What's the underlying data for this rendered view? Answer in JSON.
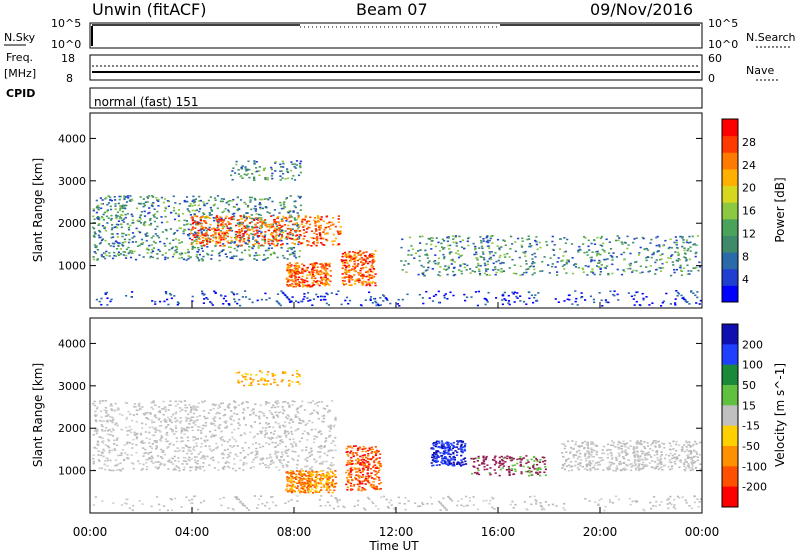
{
  "header": {
    "station": "Unwin (fitACF)",
    "beam": "Beam 07",
    "date": "09/Nov/2016"
  },
  "control_panels": {
    "nsky": {
      "left_label": "N.Sky",
      "right_label": "N.Search",
      "tick_top": "10^5",
      "tick_bottom": "10^0"
    },
    "freq": {
      "left_label_1": "Freq.",
      "left_label_2": "[MHz]",
      "tick_top": "18",
      "tick_bottom": "8",
      "right_label": "Nave",
      "right_tick_top": "60",
      "right_tick_bottom": "0"
    },
    "cpid": {
      "label": "CPID",
      "value": "normal (fast) 151"
    }
  },
  "chart_data": [
    {
      "type": "heatmap",
      "name": "power",
      "ylabel": "Slant Range [km]",
      "ylim": [
        0,
        4600
      ],
      "yticks": [
        "1000",
        "2000",
        "3000",
        "4000"
      ],
      "colorbar": {
        "label": "Power [dB]",
        "ticks": [
          "4",
          "8",
          "12",
          "16",
          "20",
          "24",
          "28"
        ],
        "colors": [
          "#0000ff",
          "#1f3fd0",
          "#2b6aa8",
          "#3f8a6a",
          "#4aa35a",
          "#8cc840",
          "#d6d820",
          "#ffb000",
          "#ff7a00",
          "#ff3a00",
          "#ff0000"
        ]
      }
    },
    {
      "type": "heatmap",
      "name": "velocity",
      "ylabel": "Slant Range [km]",
      "ylim": [
        0,
        4600
      ],
      "yticks": [
        "1000",
        "2000",
        "3000",
        "4000"
      ],
      "colorbar": {
        "label": "Velocity [m s^-1]",
        "ticks": [
          "200",
          "100",
          "50",
          "15",
          "-15",
          "-50",
          "-100",
          "-200"
        ],
        "colors": [
          "#1010b0",
          "#2040ff",
          "#1a8a3a",
          "#60c040",
          "#c0c0c0",
          "#ffd000",
          "#ff9000",
          "#ff5000",
          "#ff0000"
        ]
      }
    }
  ],
  "x_axis": {
    "label": "Time UT",
    "ticks": [
      "00:00",
      "04:00",
      "08:00",
      "12:00",
      "16:00",
      "20:00",
      "00:00"
    ]
  },
  "colors": {
    "axis": "#000000",
    "ground_scatter": "#b8b8b8"
  }
}
